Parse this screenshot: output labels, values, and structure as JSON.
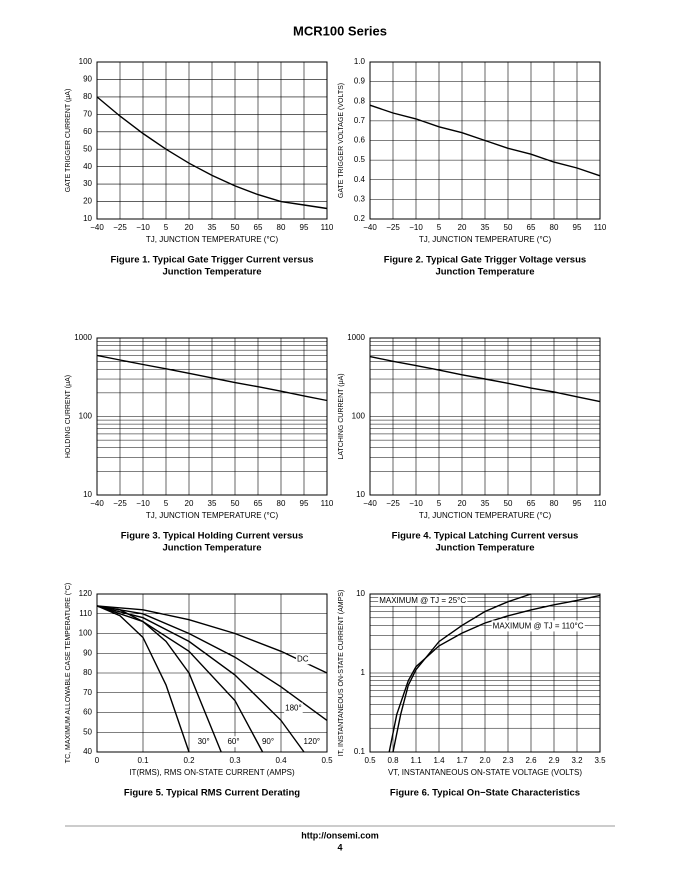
{
  "header": "MCR100 Series",
  "footer": {
    "url": "http://onsemi.com",
    "page": "4"
  },
  "chart_data": [
    {
      "type": "line",
      "caption": [
        "Figure 1. Typical Gate Trigger Current versus",
        "Junction Temperature"
      ],
      "x_label": "TJ, JUNCTION TEMPERATURE (°C)",
      "y_label": "GATE TRIGGER CURRENT (μA)",
      "x": [
        -40,
        -25,
        -10,
        5,
        20,
        35,
        50,
        65,
        80,
        95,
        110
      ],
      "values": [
        80,
        69,
        59,
        50,
        42,
        35,
        29,
        24,
        20,
        18,
        16
      ],
      "color": "#000000",
      "xlim": [
        -40,
        110
      ],
      "ylim": [
        10,
        100
      ],
      "grid": true,
      "xticks": [
        {
          "value": -40,
          "label": "−40"
        },
        {
          "value": -25,
          "label": "−25"
        },
        {
          "value": -10,
          "label": "−10"
        },
        5,
        20,
        35,
        50,
        65,
        80,
        95,
        110
      ],
      "yticks": [
        10,
        20,
        30,
        40,
        50,
        60,
        70,
        80,
        90,
        100
      ]
    },
    {
      "type": "line",
      "caption": [
        "Figure 2. Typical Gate Trigger Voltage versus",
        "Junction Temperature"
      ],
      "x_label": "TJ, JUNCTION TEMPERATURE (°C)",
      "y_label": "GATE TRIGGER VOLTAGE (VOLTS)",
      "x": [
        -40,
        -25,
        -10,
        5,
        20,
        35,
        50,
        65,
        80,
        95,
        110
      ],
      "values": [
        0.78,
        0.74,
        0.71,
        0.67,
        0.64,
        0.6,
        0.56,
        0.53,
        0.49,
        0.46,
        0.42
      ],
      "color": "#000000",
      "xlim": [
        -40,
        110
      ],
      "ylim": [
        0.2,
        1
      ],
      "grid": true,
      "xticks": [
        {
          "value": -40,
          "label": "−40"
        },
        {
          "value": -25,
          "label": "−25"
        },
        {
          "value": -10,
          "label": "−10"
        },
        5,
        20,
        35,
        50,
        65,
        80,
        95,
        110
      ],
      "yticks": [
        0.2,
        0.3,
        0.4,
        0.5,
        0.6,
        0.7,
        0.8,
        0.9,
        {
          "value": 1,
          "label": "1.0"
        }
      ]
    },
    {
      "type": "line",
      "caption": [
        "Figure 3. Typical Holding Current versus",
        "Junction Temperature"
      ],
      "x_label": "TJ, JUNCTION TEMPERATURE (°C)",
      "y_label": "HOLDING CURRENT (μA)",
      "x": [
        -40,
        -25,
        -10,
        5,
        20,
        35,
        50,
        65,
        80,
        95,
        110
      ],
      "values": [
        600,
        525,
        460,
        405,
        355,
        310,
        270,
        240,
        210,
        183,
        160
      ],
      "color": "#000000",
      "xlim": [
        -40,
        110
      ],
      "ylim": [
        10,
        1000
      ],
      "ylog": true,
      "grid": true,
      "xticks": [
        {
          "value": -40,
          "label": "−40"
        },
        {
          "value": -25,
          "label": "−25"
        },
        {
          "value": -10,
          "label": "−10"
        },
        5,
        20,
        35,
        50,
        65,
        80,
        95,
        110
      ],
      "yticks": [
        10,
        100,
        1000
      ]
    },
    {
      "type": "line",
      "caption": [
        "Figure 4. Typical Latching Current versus",
        "Junction Temperature"
      ],
      "x_label": "TJ, JUNCTION TEMPERATURE (°C)",
      "y_label": "LATCHING CURRENT (μA)",
      "x": [
        -40,
        -25,
        -10,
        5,
        20,
        35,
        50,
        65,
        80,
        95,
        110
      ],
      "values": [
        580,
        505,
        445,
        390,
        340,
        300,
        265,
        230,
        205,
        178,
        155
      ],
      "color": "#000000",
      "xlim": [
        -40,
        110
      ],
      "ylim": [
        10,
        1000
      ],
      "ylog": true,
      "grid": true,
      "xticks": [
        {
          "value": -40,
          "label": "−40"
        },
        {
          "value": -25,
          "label": "−25"
        },
        {
          "value": -10,
          "label": "−10"
        },
        5,
        20,
        35,
        50,
        65,
        80,
        95,
        110
      ],
      "yticks": [
        10,
        100,
        1000
      ]
    },
    {
      "type": "line",
      "caption": [
        "Figure 5. Typical RMS Current Derating"
      ],
      "x_label": "IT(RMS), RMS ON-STATE CURRENT (AMPS)",
      "y_label": "TC, MAXIMUM ALLOWABLE CASE TEMPERATURE (°C)",
      "xlim": [
        0,
        0.5
      ],
      "ylim": [
        40,
        120
      ],
      "grid": true,
      "xticks": [
        0,
        0.1,
        0.2,
        0.3,
        0.4,
        0.5
      ],
      "yticks": [
        40,
        50,
        60,
        70,
        80,
        90,
        100,
        110,
        120
      ],
      "series": [
        {
          "name": "DC",
          "color": "#000000",
          "x": [
            0,
            0.1,
            0.2,
            0.3,
            0.4,
            0.5
          ],
          "values": [
            114,
            112,
            107,
            100,
            91,
            80
          ]
        },
        {
          "name": "180°",
          "color": "#000000",
          "x": [
            0,
            0.1,
            0.2,
            0.3,
            0.4,
            0.5
          ],
          "values": [
            114,
            110,
            100,
            88,
            73,
            56
          ]
        },
        {
          "name": "120°",
          "color": "#000000",
          "x": [
            0,
            0.1,
            0.2,
            0.3,
            0.4,
            0.45
          ],
          "values": [
            114,
            108,
            96,
            79,
            56,
            40
          ]
        },
        {
          "name": "90°",
          "color": "#000000",
          "x": [
            0,
            0.1,
            0.2,
            0.3,
            0.36
          ],
          "values": [
            114,
            106,
            91,
            66,
            40
          ]
        },
        {
          "name": "60°",
          "color": "#000000",
          "x": [
            0,
            0.05,
            0.1,
            0.15,
            0.2,
            0.27
          ],
          "values": [
            114,
            112,
            106,
            96,
            80,
            40
          ]
        },
        {
          "name": "30°",
          "color": "#000000",
          "x": [
            0,
            0.05,
            0.1,
            0.15,
            0.2
          ],
          "values": [
            114,
            109,
            98,
            74,
            40
          ]
        }
      ]
    },
    {
      "type": "line",
      "caption": [
        "Figure 6. Typical On−State Characteristics"
      ],
      "x_label": "VT, INSTANTANEOUS ON-STATE VOLTAGE (VOLTS)",
      "y_label": "IT, INSTANTANEOUS ON-STATE CURRENT (AMPS)",
      "xlim": [
        0.5,
        3.5
      ],
      "ylim": [
        0.1,
        10
      ],
      "ylog": true,
      "grid": true,
      "xticks": [
        0.5,
        0.8,
        1.1,
        1.4,
        1.7,
        {
          "value": 2,
          "label": "2.0"
        },
        2.3,
        2.6,
        2.9,
        3.2,
        3.5
      ],
      "yticks": [
        0.1,
        1,
        10
      ],
      "series": [
        {
          "name": "MAXIMUM @ TJ = 25°C",
          "color": "#000000",
          "x": [
            0.8,
            0.9,
            1,
            1.1,
            1.4,
            1.7,
            2,
            2.3,
            2.6
          ],
          "values": [
            0.1,
            0.3,
            0.7,
            1.1,
            2.5,
            4,
            6,
            8,
            10
          ]
        },
        {
          "name": "MAXIMUM @ TJ = 110°C",
          "color": "#000000",
          "x": [
            0.75,
            0.85,
            1,
            1.1,
            1.4,
            1.7,
            2,
            2.3,
            2.6,
            2.9,
            3.2,
            3.5
          ],
          "values": [
            0.1,
            0.3,
            0.8,
            1.2,
            2.2,
            3.2,
            4.3,
            5.3,
            6.3,
            7.3,
            8.3,
            9.6
          ]
        }
      ]
    }
  ]
}
